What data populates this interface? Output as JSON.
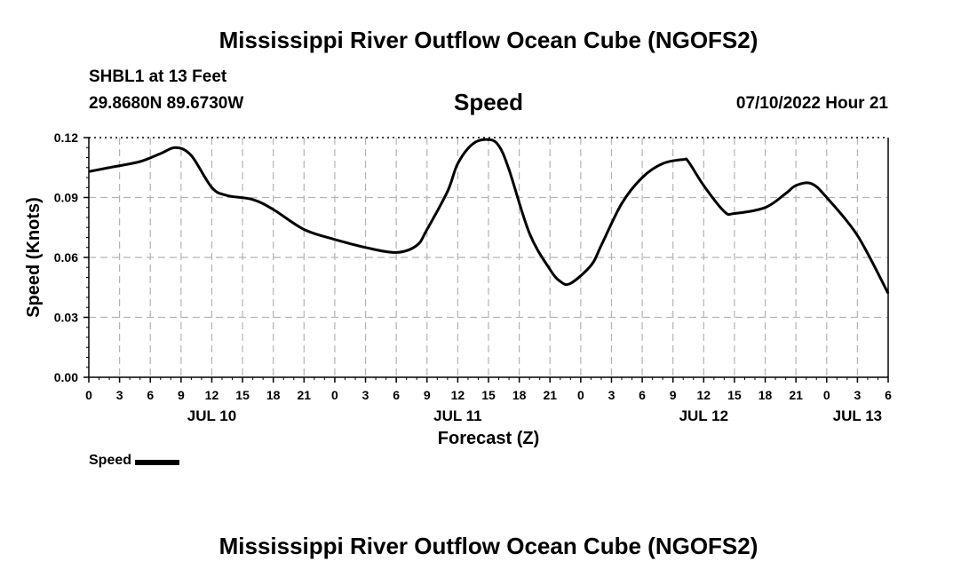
{
  "header": {
    "title": "Mississippi River Outflow Ocean Cube (NGOFS2)",
    "station": "SHBL1 at 13 Feet",
    "coords": "29.8680N  89.6730W",
    "datetime": "07/10/2022 Hour 21"
  },
  "footer": {
    "title": "Mississippi River Outflow Ocean Cube (NGOFS2)"
  },
  "legend": {
    "label": "Speed"
  },
  "chart_data": {
    "type": "line",
    "title": "Speed",
    "xlabel": "Forecast (Z)",
    "ylabel": "Speed (Knots)",
    "xlim": [
      0,
      78
    ],
    "ylim": [
      0,
      0.12
    ],
    "yticks": [
      "0.00",
      "0.03",
      "0.06",
      "0.09",
      "0.12"
    ],
    "xtick_labels": [
      "0",
      "3",
      "6",
      "9",
      "12",
      "15",
      "18",
      "21",
      "0",
      "3",
      "6",
      "9",
      "12",
      "15",
      "18",
      "21",
      "0",
      "3",
      "6",
      "9",
      "12",
      "15",
      "18",
      "21",
      "0",
      "3",
      "6"
    ],
    "day_labels": [
      {
        "x": 12,
        "label": "JUL 10"
      },
      {
        "x": 36,
        "label": "JUL 11"
      },
      {
        "x": 60,
        "label": "JUL 12"
      },
      {
        "x": 75,
        "label": "JUL 13"
      }
    ],
    "grid": true,
    "legend_position": "bottom-left",
    "series": [
      {
        "name": "Speed",
        "color": "#000000",
        "x": [
          0,
          2,
          5,
          7,
          8.5,
          10,
          12,
          13.5,
          16,
          18,
          21,
          24,
          27,
          30,
          32,
          33,
          35,
          36,
          37.5,
          39,
          40,
          41,
          43,
          45,
          46,
          47,
          49,
          50,
          52,
          54,
          56,
          58,
          58.5,
          60,
          62,
          63,
          66,
          68,
          69,
          70.5,
          72,
          75,
          78
        ],
        "values": [
          0.103,
          0.105,
          0.108,
          0.112,
          0.115,
          0.111,
          0.095,
          0.091,
          0.089,
          0.084,
          0.074,
          0.069,
          0.065,
          0.0625,
          0.066,
          0.074,
          0.093,
          0.107,
          0.117,
          0.119,
          0.116,
          0.104,
          0.072,
          0.054,
          0.048,
          0.047,
          0.056,
          0.066,
          0.087,
          0.1,
          0.107,
          0.109,
          0.108,
          0.096,
          0.083,
          0.082,
          0.085,
          0.092,
          0.096,
          0.097,
          0.09,
          0.071,
          0.042
        ]
      }
    ]
  }
}
